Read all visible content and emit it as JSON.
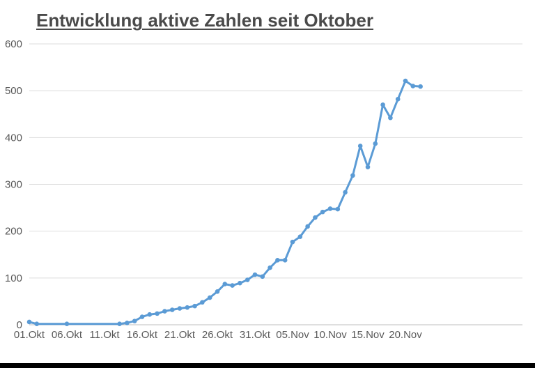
{
  "chart_data": {
    "type": "line",
    "title": "Entwicklung aktive Zahlen seit Oktober",
    "xlabel": "",
    "ylabel": "",
    "ylim": [
      0,
      600
    ],
    "yticks": [
      0,
      100,
      200,
      300,
      400,
      500,
      600
    ],
    "x_tick_labels": [
      "01.Okt",
      "06.Okt",
      "11.Okt",
      "16.Okt",
      "21.Okt",
      "26.Okt",
      "31.Okt",
      "05.Nov",
      "10.Nov",
      "15.Nov",
      "20.Nov"
    ],
    "grid": true,
    "legend": "none",
    "series": [
      {
        "color": "#5b9bd5",
        "points": [
          {
            "x": "01.Okt",
            "y": 6
          },
          {
            "x": "02.Okt",
            "y": 2
          },
          {
            "x": "06.Okt",
            "y": 2
          },
          {
            "x": "13.Okt",
            "y": 2
          },
          {
            "x": "14.Okt",
            "y": 4
          },
          {
            "x": "15.Okt",
            "y": 8
          },
          {
            "x": "16.Okt",
            "y": 17
          },
          {
            "x": "17.Okt",
            "y": 22
          },
          {
            "x": "18.Okt",
            "y": 24
          },
          {
            "x": "19.Okt",
            "y": 29
          },
          {
            "x": "20.Okt",
            "y": 32
          },
          {
            "x": "21.Okt",
            "y": 35
          },
          {
            "x": "22.Okt",
            "y": 37
          },
          {
            "x": "23.Okt",
            "y": 40
          },
          {
            "x": "24.Okt",
            "y": 48
          },
          {
            "x": "25.Okt",
            "y": 58
          },
          {
            "x": "26.Okt",
            "y": 71
          },
          {
            "x": "27.Okt",
            "y": 87
          },
          {
            "x": "28.Okt",
            "y": 84
          },
          {
            "x": "29.Okt",
            "y": 89
          },
          {
            "x": "30.Okt",
            "y": 96
          },
          {
            "x": "31.Okt",
            "y": 107
          },
          {
            "x": "01.Nov",
            "y": 103
          },
          {
            "x": "02.Nov",
            "y": 122
          },
          {
            "x": "03.Nov",
            "y": 138
          },
          {
            "x": "04.Nov",
            "y": 138
          },
          {
            "x": "05.Nov",
            "y": 177
          },
          {
            "x": "06.Nov",
            "y": 188
          },
          {
            "x": "07.Nov",
            "y": 210
          },
          {
            "x": "08.Nov",
            "y": 229
          },
          {
            "x": "09.Nov",
            "y": 241
          },
          {
            "x": "10.Nov",
            "y": 248
          },
          {
            "x": "11.Nov",
            "y": 247
          },
          {
            "x": "12.Nov",
            "y": 283
          },
          {
            "x": "13.Nov",
            "y": 319
          },
          {
            "x": "14.Nov",
            "y": 382
          },
          {
            "x": "15.Nov",
            "y": 337
          },
          {
            "x": "16.Nov",
            "y": 387
          },
          {
            "x": "17.Nov",
            "y": 470
          },
          {
            "x": "18.Nov",
            "y": 442
          },
          {
            "x": "19.Nov",
            "y": 482
          },
          {
            "x": "20.Nov",
            "y": 521
          },
          {
            "x": "21.Nov",
            "y": 510
          },
          {
            "x": "22.Nov",
            "y": 509
          }
        ]
      }
    ]
  }
}
